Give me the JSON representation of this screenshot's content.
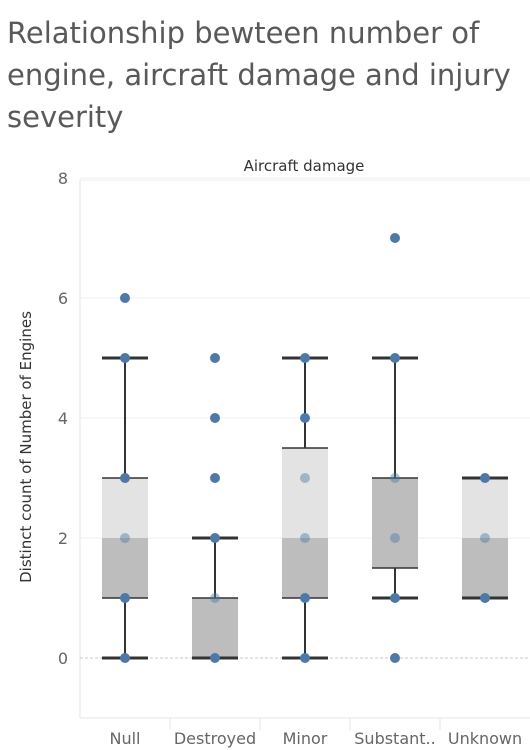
{
  "chart_data": {
    "type": "box",
    "title": "Relationship bewteen number of engine, aircraft damage and injury severity",
    "column_header": "Aircraft damage",
    "ylabel": "Distinct count of Number of Engines",
    "ylim": [
      -1,
      8
    ],
    "yticks": [
      0,
      2,
      4,
      6,
      8
    ],
    "categories": [
      "Null",
      "Destroyed",
      "Minor",
      "Substant..",
      "Unknown"
    ],
    "boxes": [
      {
        "category": "Null",
        "whisker_low": 0,
        "q1": 1,
        "median": 2,
        "q3": 3,
        "whisker_high": 5
      },
      {
        "category": "Destroyed",
        "whisker_low": 0,
        "q1": 0,
        "median": 1,
        "q3": 1,
        "whisker_high": 2
      },
      {
        "category": "Minor",
        "whisker_low": 0,
        "q1": 1,
        "median": 2,
        "q3": 3.5,
        "whisker_high": 5
      },
      {
        "category": "Substant..",
        "whisker_low": 1,
        "q1": 1.5,
        "median": 3,
        "q3": 3,
        "whisker_high": 5
      },
      {
        "category": "Unknown",
        "whisker_low": 1,
        "q1": 1,
        "median": 2,
        "q3": 3,
        "whisker_high": 3
      }
    ],
    "points": [
      {
        "category": "Null",
        "values": [
          0,
          1,
          2,
          3,
          5,
          6
        ]
      },
      {
        "category": "Destroyed",
        "values": [
          0,
          1,
          2,
          3,
          4,
          5
        ]
      },
      {
        "category": "Minor",
        "values": [
          0,
          1,
          2,
          3,
          4,
          5
        ]
      },
      {
        "category": "Substant..",
        "values": [
          0,
          1,
          2,
          3,
          5,
          7
        ]
      },
      {
        "category": "Unknown",
        "values": [
          1,
          2,
          3
        ]
      }
    ],
    "colors": {
      "point": "#4e79a7",
      "box_upper": "#e3e3e3",
      "box_lower": "#bdbdbd",
      "whisker": "#333333",
      "text": "#666666"
    },
    "grid": true
  }
}
